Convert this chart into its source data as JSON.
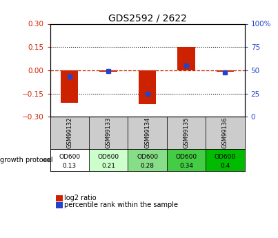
{
  "title": "GDS2592 / 2622",
  "samples": [
    "GSM99132",
    "GSM99133",
    "GSM99134",
    "GSM99135",
    "GSM99136"
  ],
  "protocol_labels_line1": [
    "OD600",
    "OD600",
    "OD600",
    "OD600",
    "OD600"
  ],
  "protocol_labels_line2": [
    "0.13",
    "0.21",
    "0.28",
    "0.34",
    "0.4"
  ],
  "protocol_colors": [
    "#ffffff",
    "#ccffcc",
    "#88dd88",
    "#44cc44",
    "#00bb00"
  ],
  "log2_ratios": [
    -0.21,
    -0.01,
    -0.22,
    0.15,
    -0.01
  ],
  "percentile_ranks": [
    43,
    49,
    25,
    55,
    48
  ],
  "bar_color": "#cc2200",
  "dot_color": "#2244cc",
  "ylim_left": [
    -0.3,
    0.3
  ],
  "ylim_right": [
    0,
    100
  ],
  "yticks_left": [
    -0.3,
    -0.15,
    0,
    0.15,
    0.3
  ],
  "yticks_right": [
    0,
    25,
    50,
    75,
    100
  ],
  "left_tick_color": "#cc2200",
  "right_tick_color": "#2244cc",
  "zero_line_color": "#cc2200",
  "grid_color": "#000000",
  "title_fontsize": 10,
  "tick_fontsize": 7.5,
  "legend_label_ratio": "log2 ratio",
  "legend_label_pct": "percentile rank within the sample",
  "growth_protocol_label": "growth protocol",
  "bar_width": 0.45,
  "sample_box_color": "#cccccc",
  "n_samples": 5
}
